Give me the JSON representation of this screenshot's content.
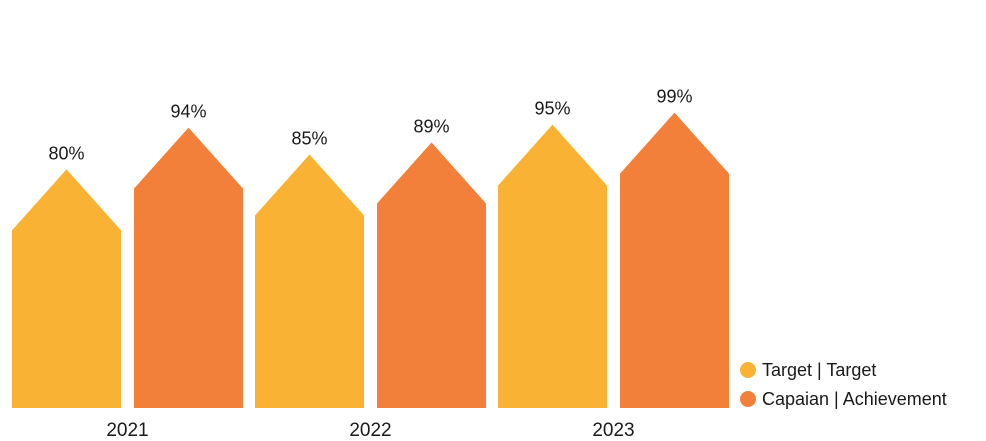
{
  "chart_data": {
    "type": "bar",
    "categories": [
      "2021",
      "2022",
      "2023"
    ],
    "series": [
      {
        "name": "Target | Target",
        "values": [
          80,
          85,
          95
        ],
        "color": "#F9B233"
      },
      {
        "name": "Capaian | Achievement",
        "values": [
          94,
          89,
          99
        ],
        "color": "#F27F3A"
      }
    ],
    "value_suffix": "%",
    "bar_shape": "arrow-up",
    "axes_visible": false,
    "grid": false,
    "legend_position": "bottom-right"
  }
}
